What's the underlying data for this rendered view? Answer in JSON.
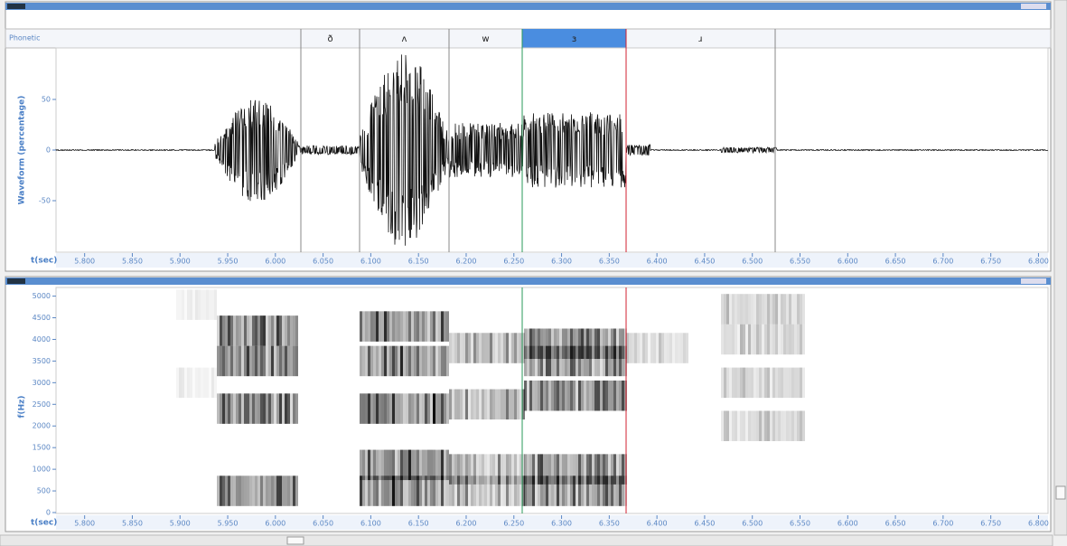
{
  "header": {
    "tier_label": "Phonetic",
    "phonemes": [
      "ð",
      "ʌ",
      "w",
      "ɜ",
      "ɹ"
    ]
  },
  "waveform": {
    "ylabel": "Waveform (percentage)",
    "xlabel": "t(sec)",
    "ylim": [
      -100,
      100
    ],
    "yticks": [
      50,
      0,
      -50
    ]
  },
  "spectrogram": {
    "ylabel": "f(Hz)",
    "xlabel": "t(sec)",
    "ylim": [
      0,
      5200
    ],
    "yticks": [
      0,
      500,
      1000,
      1500,
      2000,
      2500,
      3000,
      3500,
      4000,
      4500,
      5000
    ]
  },
  "time_axis": {
    "xlim": [
      5.77,
      6.81
    ],
    "xticks": [
      {
        "value": 5.8,
        "label": "5.800"
      },
      {
        "value": 5.85,
        "label": "5.850"
      },
      {
        "value": 5.9,
        "label": "5.900"
      },
      {
        "value": 5.95,
        "label": "5.950"
      },
      {
        "value": 6.0,
        "label": "6.000"
      },
      {
        "value": 6.05,
        "label": "6.050"
      },
      {
        "value": 6.1,
        "label": "6.100"
      },
      {
        "value": 6.15,
        "label": "6.150"
      },
      {
        "value": 6.2,
        "label": "6.200"
      },
      {
        "value": 6.25,
        "label": "6.250"
      },
      {
        "value": 6.3,
        "label": "6.300"
      },
      {
        "value": 6.35,
        "label": "6.350"
      },
      {
        "value": 6.4,
        "label": "6.400"
      },
      {
        "value": 6.45,
        "label": "6.450"
      },
      {
        "value": 6.5,
        "label": "6.500"
      },
      {
        "value": 6.55,
        "label": "6.550"
      },
      {
        "value": 6.6,
        "label": "6.600"
      },
      {
        "value": 6.65,
        "label": "6.650"
      },
      {
        "value": 6.7,
        "label": "6.700"
      },
      {
        "value": 6.75,
        "label": "6.750"
      },
      {
        "value": 6.8,
        "label": "6.800"
      }
    ]
  }
}
